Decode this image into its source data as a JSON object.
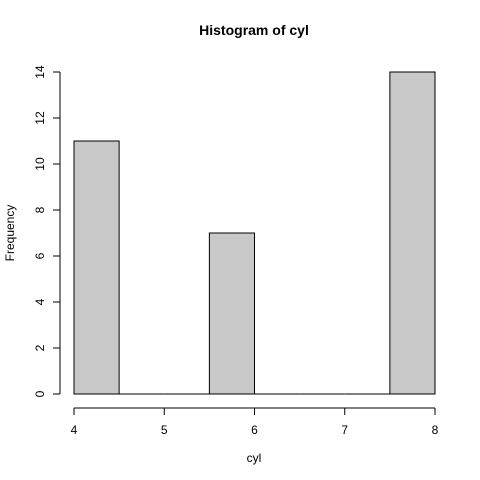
{
  "chart_data": {
    "type": "bar",
    "title": "Histogram of cyl",
    "xlabel": "cyl",
    "ylabel": "Frequency",
    "bins": [
      {
        "start": 4.0,
        "end": 4.5,
        "count": 11
      },
      {
        "start": 4.5,
        "end": 5.0,
        "count": 0
      },
      {
        "start": 5.0,
        "end": 5.5,
        "count": 0
      },
      {
        "start": 5.5,
        "end": 6.0,
        "count": 7
      },
      {
        "start": 6.0,
        "end": 6.5,
        "count": 0
      },
      {
        "start": 6.5,
        "end": 7.0,
        "count": 0
      },
      {
        "start": 7.0,
        "end": 7.5,
        "count": 0
      },
      {
        "start": 7.5,
        "end": 8.0,
        "count": 14
      }
    ],
    "xlim": [
      4,
      8
    ],
    "ylim": [
      0,
      14
    ],
    "x_ticks": [
      "4",
      "5",
      "6",
      "7",
      "8"
    ],
    "y_ticks": [
      "0",
      "2",
      "4",
      "6",
      "8",
      "10",
      "12",
      "14"
    ],
    "grid": false,
    "bar_color": "#c8c8c8",
    "border_color": "#000000"
  }
}
